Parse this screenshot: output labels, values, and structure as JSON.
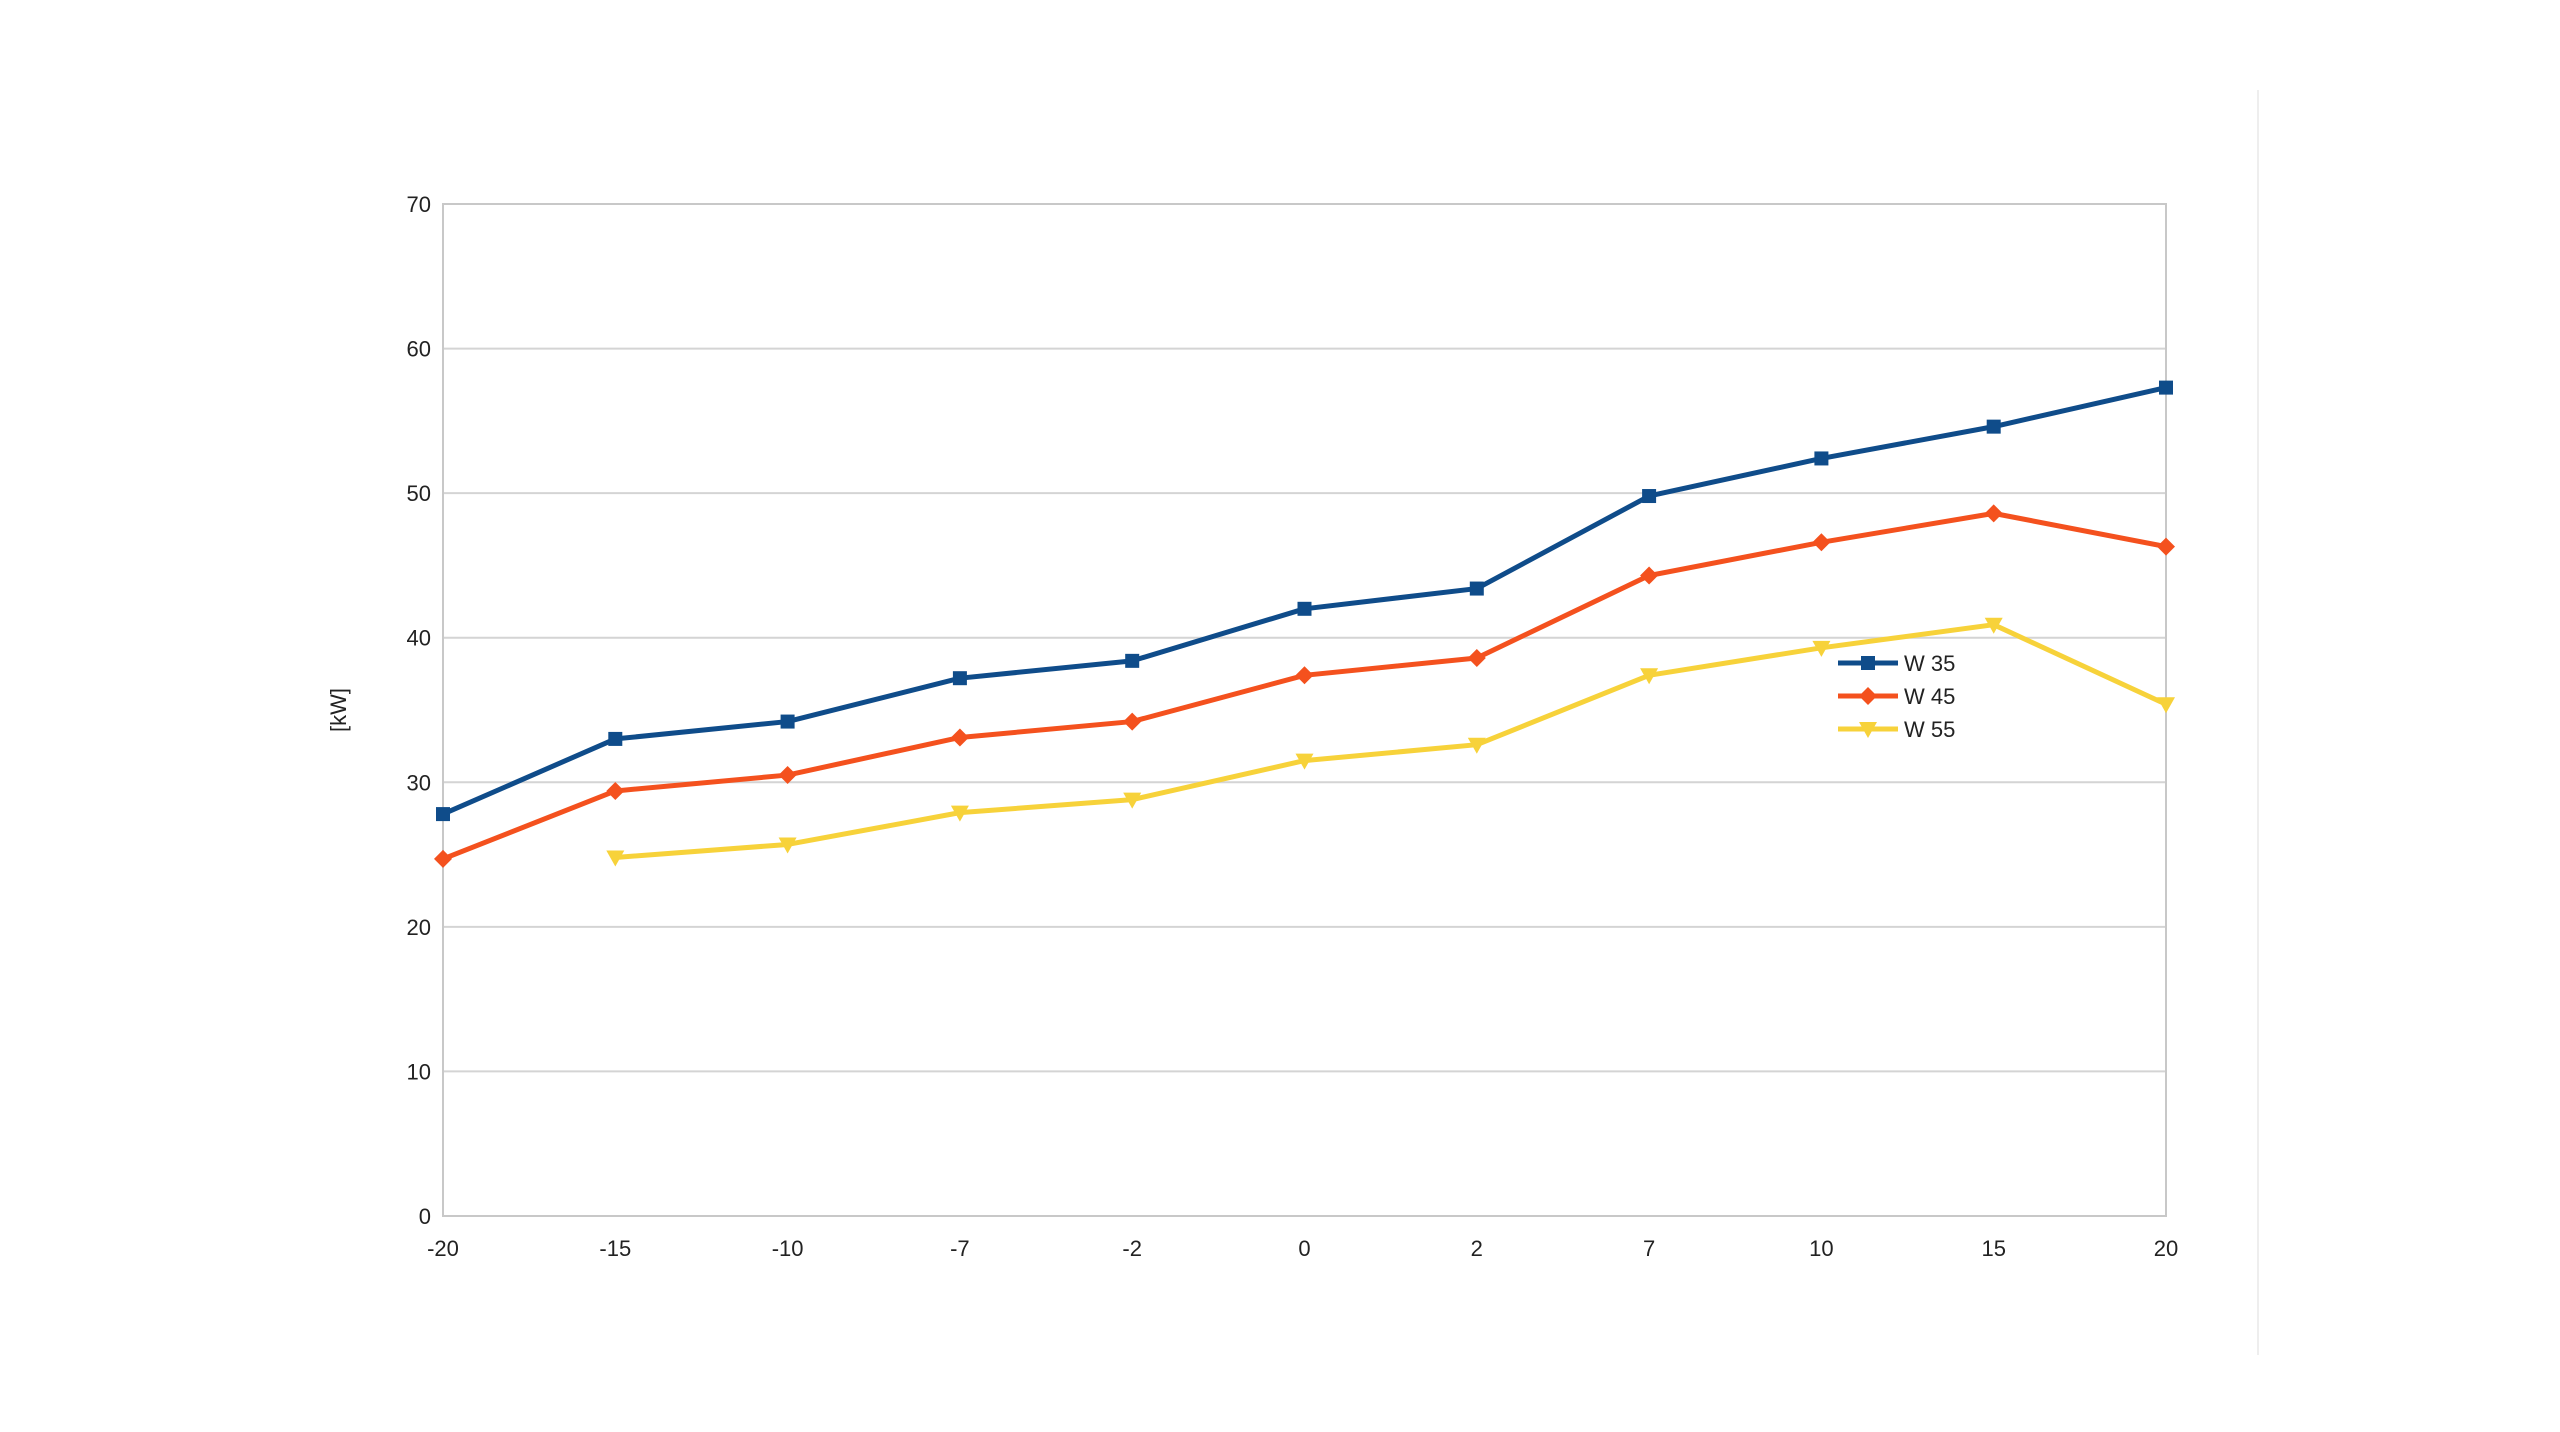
{
  "chart_data": {
    "type": "line",
    "title": "",
    "xlabel": "",
    "ylabel": "[kW]",
    "categories": [
      "-20",
      "-15",
      "-10",
      "-7",
      "-2",
      "0",
      "2",
      "7",
      "10",
      "15",
      "20"
    ],
    "ylim": [
      0,
      70
    ],
    "yticks": [
      0,
      10,
      20,
      30,
      40,
      50,
      60,
      70
    ],
    "grid": true,
    "legend_position": "right",
    "series": [
      {
        "name": "W 35",
        "color": "#0f4c8a",
        "marker": "square",
        "values": [
          27.8,
          33.0,
          34.2,
          37.2,
          38.4,
          42.0,
          43.4,
          49.8,
          52.4,
          54.6,
          57.3
        ]
      },
      {
        "name": "W 45",
        "color": "#f4511e",
        "marker": "diamond",
        "values": [
          24.7,
          29.4,
          30.5,
          33.1,
          34.2,
          37.4,
          38.6,
          44.3,
          46.6,
          48.6,
          46.3
        ]
      },
      {
        "name": "W 55",
        "color": "#f7d23a",
        "marker": "triangle-down",
        "values": [
          null,
          24.8,
          25.7,
          27.9,
          28.8,
          31.5,
          32.6,
          37.4,
          39.3,
          40.9,
          35.4
        ]
      }
    ]
  }
}
